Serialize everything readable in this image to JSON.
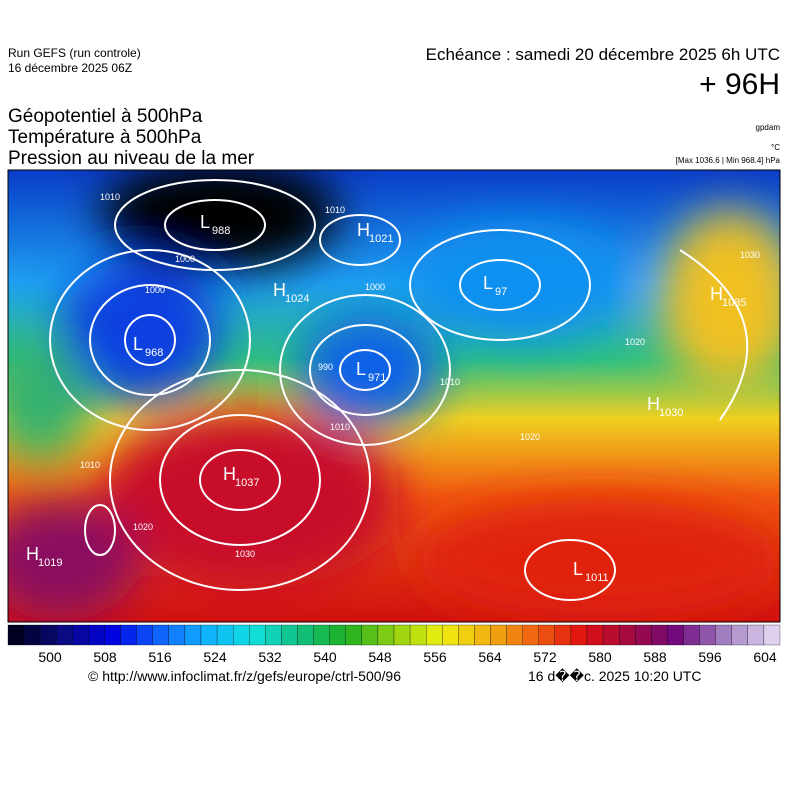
{
  "header": {
    "run": "Run GEFS (run controle)",
    "run_date": "16 décembre 2025 06Z",
    "valid": "Echéance : samedi 20 décembre 2025 6h UTC",
    "lead": "+ 96H"
  },
  "fields": [
    "Géopotentiel à 500hPa",
    "Température à 500hPa",
    "Pression au niveau de la mer"
  ],
  "units": {
    "geopotential": "gpdam",
    "temperature": "°C",
    "pressure": "[Max 1036.6 | Min 968.4] hPa"
  },
  "systems": [
    {
      "kind": "L",
      "value": "988"
    },
    {
      "kind": "H",
      "value": "1021"
    },
    {
      "kind": "H",
      "value": "1024"
    },
    {
      "kind": "L",
      "value": "97"
    },
    {
      "kind": "H",
      "value": "1035"
    },
    {
      "kind": "L",
      "value": "968"
    },
    {
      "kind": "L",
      "value": "971"
    },
    {
      "kind": "H",
      "value": "1030"
    },
    {
      "kind": "H",
      "value": "1037"
    },
    {
      "kind": "H",
      "value": "1019"
    },
    {
      "kind": "L",
      "value": "1011"
    }
  ],
  "isobar_labels": [
    "1010",
    "1000",
    "1000",
    "1010",
    "1000",
    "990",
    "1010",
    "1010",
    "1020",
    "1030",
    "1020",
    "1020",
    "1030",
    "1010"
  ],
  "colorbar": {
    "ticks": [
      500,
      508,
      516,
      524,
      532,
      540,
      548,
      556,
      564,
      572,
      580,
      588,
      596,
      604
    ]
  },
  "footer": {
    "source": "© http://www.infoclimat.fr/z/gefs/europe/ctrl-500/96",
    "generated": "16 d��c. 2025 10:20 UTC"
  }
}
